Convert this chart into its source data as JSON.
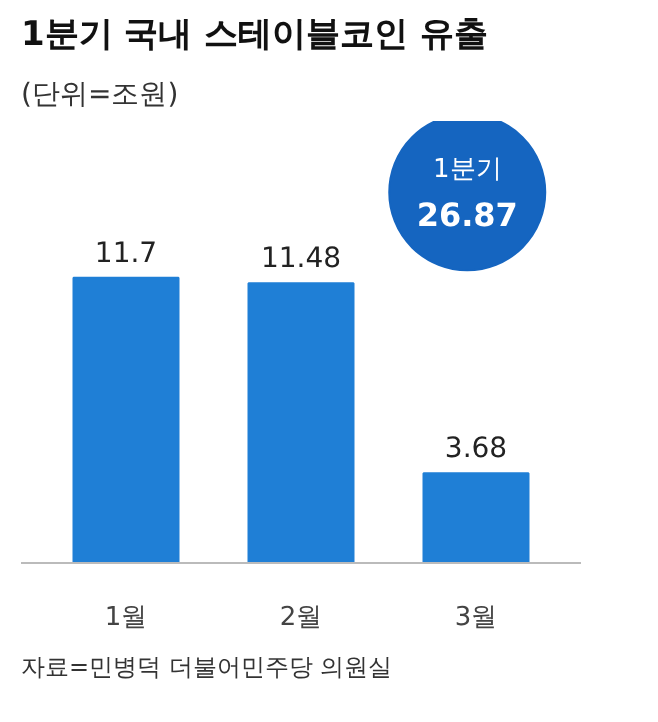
{
  "chart_data": {
    "type": "bar",
    "title": "1분기 국내 스테이블코인 유출",
    "subtitle": "(단위=조원)",
    "categories": [
      "1월",
      "2월",
      "3월"
    ],
    "values": [
      11.7,
      11.48,
      3.68
    ],
    "color": "#1f7fd6",
    "data_labels": true,
    "annotations": [
      "1분기\n26.87",
      "자료=민병덕 더불어민주당 의원실"
    ]
  }
}
